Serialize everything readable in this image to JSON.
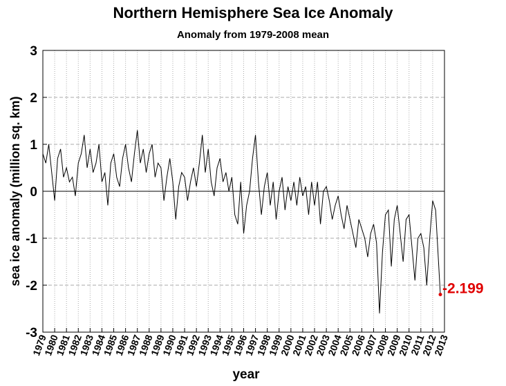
{
  "chart_data": {
    "type": "line",
    "title": "Northern Hemisphere Sea Ice Anomaly",
    "subtitle": "Anomaly from 1979-2008 mean",
    "xlabel": "year",
    "ylabel": "sea ice anomaly (million sq. km)",
    "color": "#000000",
    "highlight_color": "#e00000",
    "grid": true,
    "xlim": [
      1979,
      2013
    ],
    "ylim": [
      -3,
      3
    ],
    "yticks": [
      -3,
      -2,
      -1,
      0,
      1,
      2,
      3
    ],
    "xticks": [
      1979,
      1980,
      1981,
      1982,
      1983,
      1984,
      1985,
      1986,
      1987,
      1988,
      1989,
      1990,
      1991,
      1992,
      1993,
      1994,
      1995,
      1996,
      1997,
      1998,
      1999,
      2000,
      2001,
      2002,
      2003,
      2004,
      2005,
      2006,
      2007,
      2008,
      2009,
      2010,
      2011,
      2012,
      2013
    ],
    "x": [
      1979,
      1979.25,
      1979.5,
      1979.75,
      1980,
      1980.25,
      1980.5,
      1980.75,
      1981,
      1981.25,
      1981.5,
      1981.75,
      1982,
      1982.25,
      1982.5,
      1982.75,
      1983,
      1983.25,
      1983.5,
      1983.75,
      1984,
      1984.25,
      1984.5,
      1984.75,
      1985,
      1985.25,
      1985.5,
      1985.75,
      1986,
      1986.25,
      1986.5,
      1986.75,
      1987,
      1987.25,
      1987.5,
      1987.75,
      1988,
      1988.25,
      1988.5,
      1988.75,
      1989,
      1989.25,
      1989.5,
      1989.75,
      1990,
      1990.25,
      1990.5,
      1990.75,
      1991,
      1991.25,
      1991.5,
      1991.75,
      1992,
      1992.25,
      1992.5,
      1992.75,
      1993,
      1993.25,
      1993.5,
      1993.75,
      1994,
      1994.25,
      1994.5,
      1994.75,
      1995,
      1995.25,
      1995.5,
      1995.75,
      1996,
      1996.25,
      1996.5,
      1996.75,
      1997,
      1997.25,
      1997.5,
      1997.75,
      1998,
      1998.25,
      1998.5,
      1998.75,
      1999,
      1999.25,
      1999.5,
      1999.75,
      2000,
      2000.25,
      2000.5,
      2000.75,
      2001,
      2001.25,
      2001.5,
      2001.75,
      2002,
      2002.25,
      2002.5,
      2002.75,
      2003,
      2003.25,
      2003.5,
      2003.75,
      2004,
      2004.25,
      2004.5,
      2004.75,
      2005,
      2005.25,
      2005.5,
      2005.75,
      2006,
      2006.25,
      2006.5,
      2006.75,
      2007,
      2007.25,
      2007.5,
      2007.75,
      2008,
      2008.25,
      2008.5,
      2008.75,
      2009,
      2009.25,
      2009.5,
      2009.75,
      2010,
      2010.25,
      2010.5,
      2010.75,
      2011,
      2011.25,
      2011.5,
      2011.75,
      2012,
      2012.25,
      2012.65
    ],
    "values": [
      0.8,
      0.6,
      1.0,
      0.4,
      -0.2,
      0.7,
      0.9,
      0.3,
      0.5,
      0.2,
      0.3,
      -0.1,
      0.6,
      0.8,
      1.2,
      0.5,
      0.9,
      0.4,
      0.6,
      1.0,
      0.2,
      0.4,
      -0.3,
      0.6,
      0.8,
      0.3,
      0.1,
      0.7,
      1.0,
      0.5,
      0.2,
      0.8,
      1.3,
      0.6,
      0.9,
      0.4,
      0.8,
      1.0,
      0.3,
      0.6,
      0.5,
      -0.2,
      0.3,
      0.7,
      0.2,
      -0.6,
      0.1,
      0.4,
      0.3,
      -0.2,
      0.2,
      0.5,
      0.1,
      0.6,
      1.2,
      0.4,
      0.9,
      0.2,
      -0.1,
      0.5,
      0.7,
      0.2,
      0.4,
      0.0,
      0.3,
      -0.5,
      -0.7,
      0.2,
      -0.9,
      -0.3,
      0.0,
      0.7,
      1.2,
      0.2,
      -0.5,
      0.1,
      0.4,
      -0.3,
      0.2,
      -0.6,
      0.0,
      0.3,
      -0.4,
      0.1,
      -0.2,
      0.2,
      -0.3,
      0.3,
      -0.1,
      0.1,
      -0.5,
      0.2,
      -0.3,
      0.2,
      -0.7,
      0.0,
      0.1,
      -0.2,
      -0.6,
      -0.3,
      -0.1,
      -0.5,
      -0.8,
      -0.3,
      -0.6,
      -0.9,
      -1.2,
      -0.6,
      -0.8,
      -1.0,
      -1.4,
      -0.9,
      -0.7,
      -1.1,
      -2.6,
      -1.3,
      -0.5,
      -0.4,
      -1.6,
      -0.6,
      -0.3,
      -0.9,
      -1.5,
      -0.6,
      -0.5,
      -1.2,
      -1.9,
      -1.0,
      -0.9,
      -1.2,
      -2.0,
      -1.0,
      -0.2,
      -0.4,
      -2.199
    ]
  }
}
